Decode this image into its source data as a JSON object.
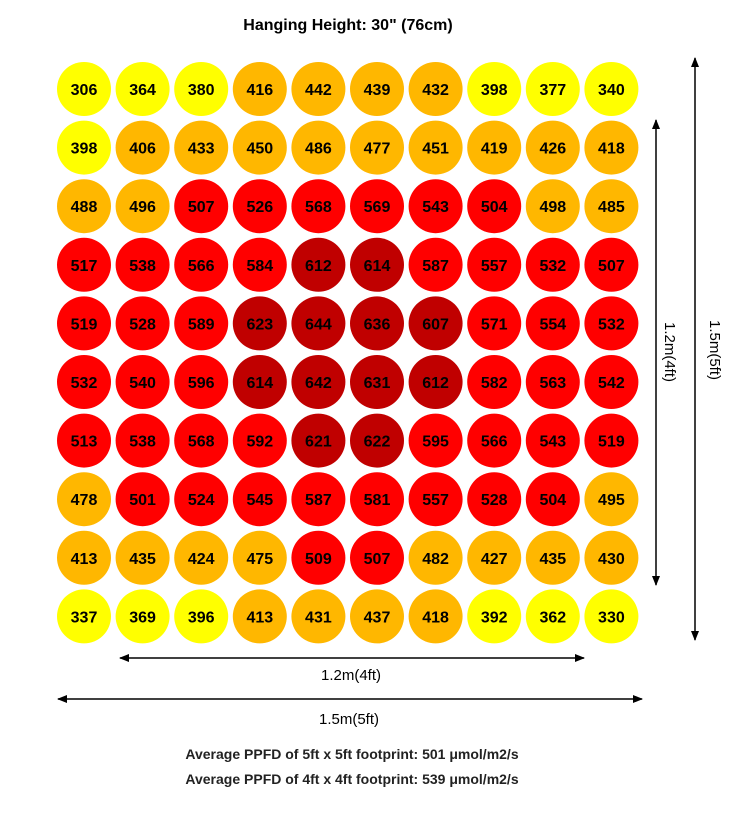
{
  "chart_data": {
    "type": "heatmap",
    "title": "Hanging Height: 30\" (76cm)",
    "rows": 10,
    "cols": 10,
    "values": [
      [
        306,
        364,
        380,
        416,
        442,
        439,
        432,
        398,
        377,
        340
      ],
      [
        398,
        406,
        433,
        450,
        486,
        477,
        451,
        419,
        426,
        418
      ],
      [
        488,
        496,
        507,
        526,
        568,
        569,
        543,
        504,
        498,
        485
      ],
      [
        517,
        538,
        566,
        584,
        612,
        614,
        587,
        557,
        532,
        507
      ],
      [
        519,
        528,
        589,
        623,
        644,
        636,
        607,
        571,
        554,
        532
      ],
      [
        532,
        540,
        596,
        614,
        642,
        631,
        612,
        582,
        563,
        542
      ],
      [
        513,
        538,
        568,
        592,
        621,
        622,
        595,
        566,
        543,
        519
      ],
      [
        478,
        501,
        524,
        545,
        587,
        581,
        557,
        528,
        504,
        495
      ],
      [
        413,
        435,
        424,
        475,
        509,
        507,
        482,
        427,
        435,
        430
      ],
      [
        337,
        369,
        396,
        413,
        431,
        437,
        418,
        392,
        362,
        330
      ]
    ],
    "color_levels": [
      "#ffff00",
      "#ffb700",
      "#ff0000",
      "#c00000"
    ],
    "cell_levels": [
      [
        0,
        0,
        0,
        1,
        1,
        1,
        1,
        0,
        0,
        0
      ],
      [
        0,
        1,
        1,
        1,
        1,
        1,
        1,
        1,
        1,
        1
      ],
      [
        1,
        1,
        2,
        2,
        2,
        2,
        2,
        2,
        1,
        1
      ],
      [
        2,
        2,
        2,
        2,
        3,
        3,
        2,
        2,
        2,
        2
      ],
      [
        2,
        2,
        2,
        3,
        3,
        3,
        3,
        2,
        2,
        2
      ],
      [
        2,
        2,
        2,
        3,
        3,
        3,
        3,
        2,
        2,
        2
      ],
      [
        2,
        2,
        2,
        2,
        3,
        3,
        2,
        2,
        2,
        2
      ],
      [
        1,
        2,
        2,
        2,
        2,
        2,
        2,
        2,
        2,
        1
      ],
      [
        1,
        1,
        1,
        1,
        2,
        2,
        1,
        1,
        1,
        1
      ],
      [
        0,
        0,
        0,
        1,
        1,
        1,
        1,
        0,
        0,
        0
      ]
    ],
    "dimensions": {
      "inner_width_label": "1.2m(4ft)",
      "outer_width_label": "1.5m(5ft)",
      "inner_height_label": "1.2m(4ft)",
      "outer_height_label": "1.5m(5ft)"
    },
    "footer": [
      "Average PPFD of 5ft x 5ft footprint: 501 μmol/m2/s",
      "Average PPFD of 4ft x 4ft footprint: 539 μmol/m2/s"
    ],
    "text_color": "#000000",
    "legend": "none",
    "grid": false
  }
}
